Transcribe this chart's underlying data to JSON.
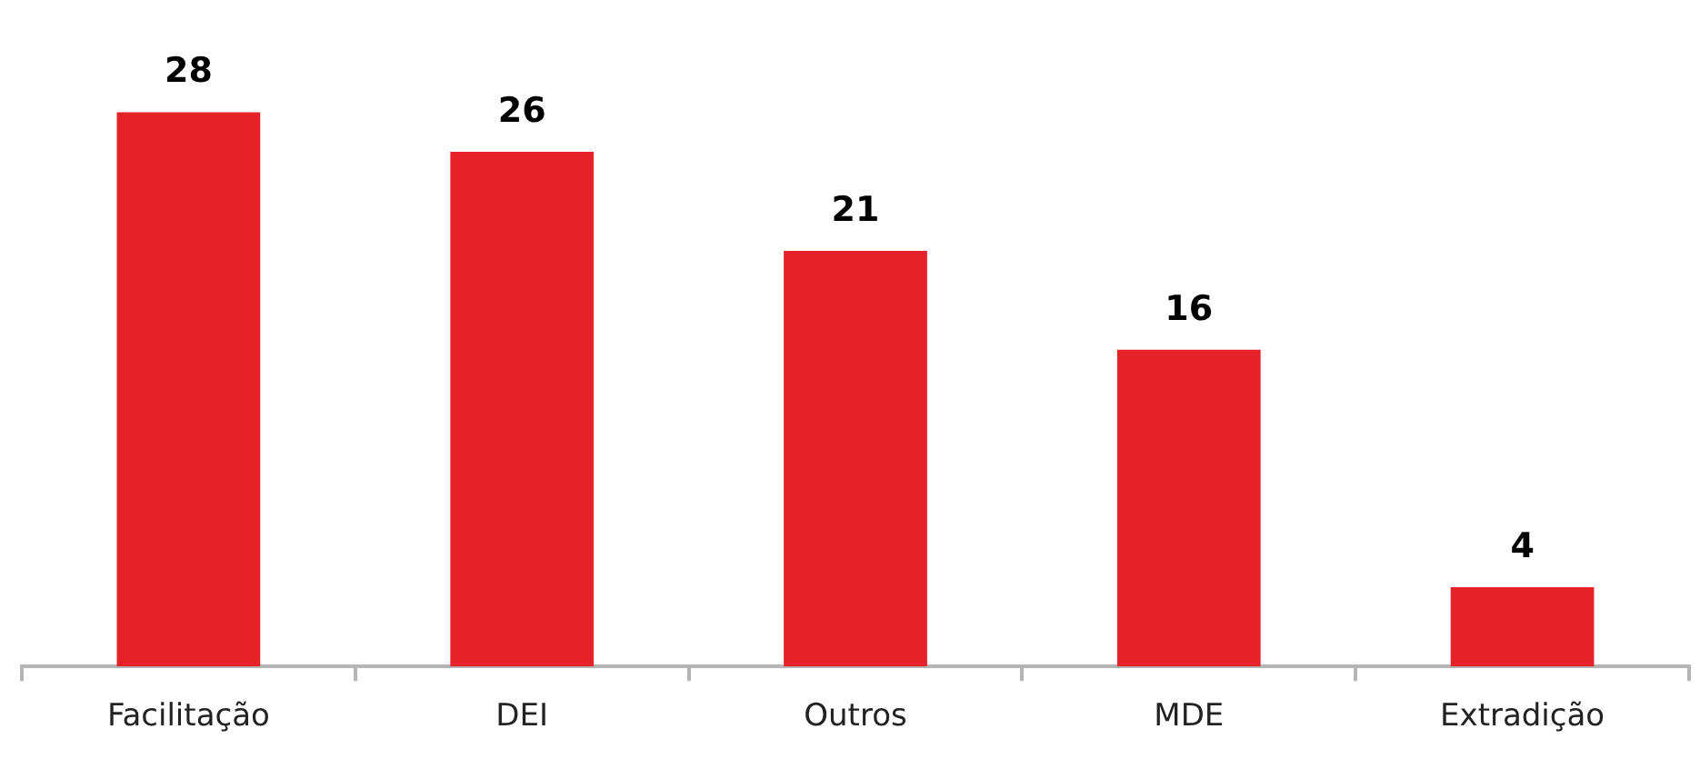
{
  "chart_data": {
    "type": "bar",
    "categories": [
      "Facilitação",
      "DEI",
      "Outros",
      "MDE",
      "Extradição"
    ],
    "values": [
      28,
      26,
      21,
      16,
      4
    ],
    "color": "#e52228",
    "data_labels": true,
    "tick_labels": "x",
    "grid": false
  }
}
